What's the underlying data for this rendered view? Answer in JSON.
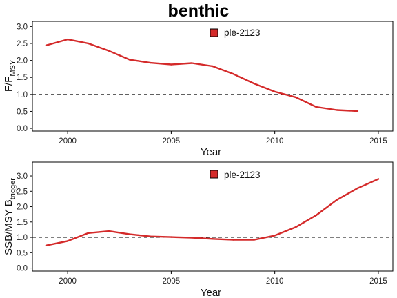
{
  "chart_data": {
    "title": "benthic",
    "panels": [
      {
        "type": "line",
        "xlabel": "Year",
        "ylabel_main": "F/F",
        "ylabel_sub": "MSY",
        "xlim": [
          1998.3,
          2015.7
        ],
        "ylim": [
          -0.08,
          3.15
        ],
        "xticks": [
          2000,
          2005,
          2010,
          2015
        ],
        "yticks": [
          0.0,
          0.5,
          1.0,
          1.5,
          2.0,
          2.5,
          3.0
        ],
        "ytick_labels": [
          "0.0",
          "0.5",
          "1.0",
          "1.5",
          "2.0",
          "2.5",
          "3.0"
        ],
        "reference_line": 1.0,
        "legend": {
          "position": "top-center",
          "entries": [
            "ple-2123"
          ]
        },
        "series": [
          {
            "name": "ple-2123",
            "color": "#d42a2a",
            "x": [
              1999,
              2000,
              2001,
              2002,
              2003,
              2004,
              2005,
              2006,
              2007,
              2008,
              2009,
              2010,
              2011,
              2012,
              2013,
              2014
            ],
            "y": [
              2.45,
              2.62,
              2.5,
              2.28,
              2.02,
              1.93,
              1.88,
              1.92,
              1.83,
              1.6,
              1.32,
              1.08,
              0.92,
              0.63,
              0.54,
              0.51
            ]
          }
        ]
      },
      {
        "type": "line",
        "xlabel": "Year",
        "ylabel_main": "SSB/MSY B",
        "ylabel_sub": "trigger",
        "xlim": [
          1998.3,
          2015.7
        ],
        "ylim": [
          -0.1,
          3.45
        ],
        "xticks": [
          2000,
          2005,
          2010,
          2015
        ],
        "yticks": [
          0.0,
          0.5,
          1.0,
          1.5,
          2.0,
          2.5,
          3.0
        ],
        "ytick_labels": [
          "0.0",
          "0.5",
          "1.0",
          "1.5",
          "2.0",
          "2.5",
          "3.0"
        ],
        "reference_line": 1.0,
        "legend": {
          "position": "top-center",
          "entries": [
            "ple-2123"
          ]
        },
        "series": [
          {
            "name": "ple-2123",
            "color": "#d42a2a",
            "x": [
              1999,
              2000,
              2001,
              2002,
              2003,
              2004,
              2005,
              2006,
              2007,
              2008,
              2009,
              2010,
              2011,
              2012,
              2013,
              2014,
              2015
            ],
            "y": [
              0.74,
              0.88,
              1.14,
              1.2,
              1.1,
              1.03,
              1.01,
              0.99,
              0.95,
              0.92,
              0.92,
              1.06,
              1.33,
              1.72,
              2.22,
              2.6,
              2.9
            ]
          }
        ]
      }
    ]
  }
}
